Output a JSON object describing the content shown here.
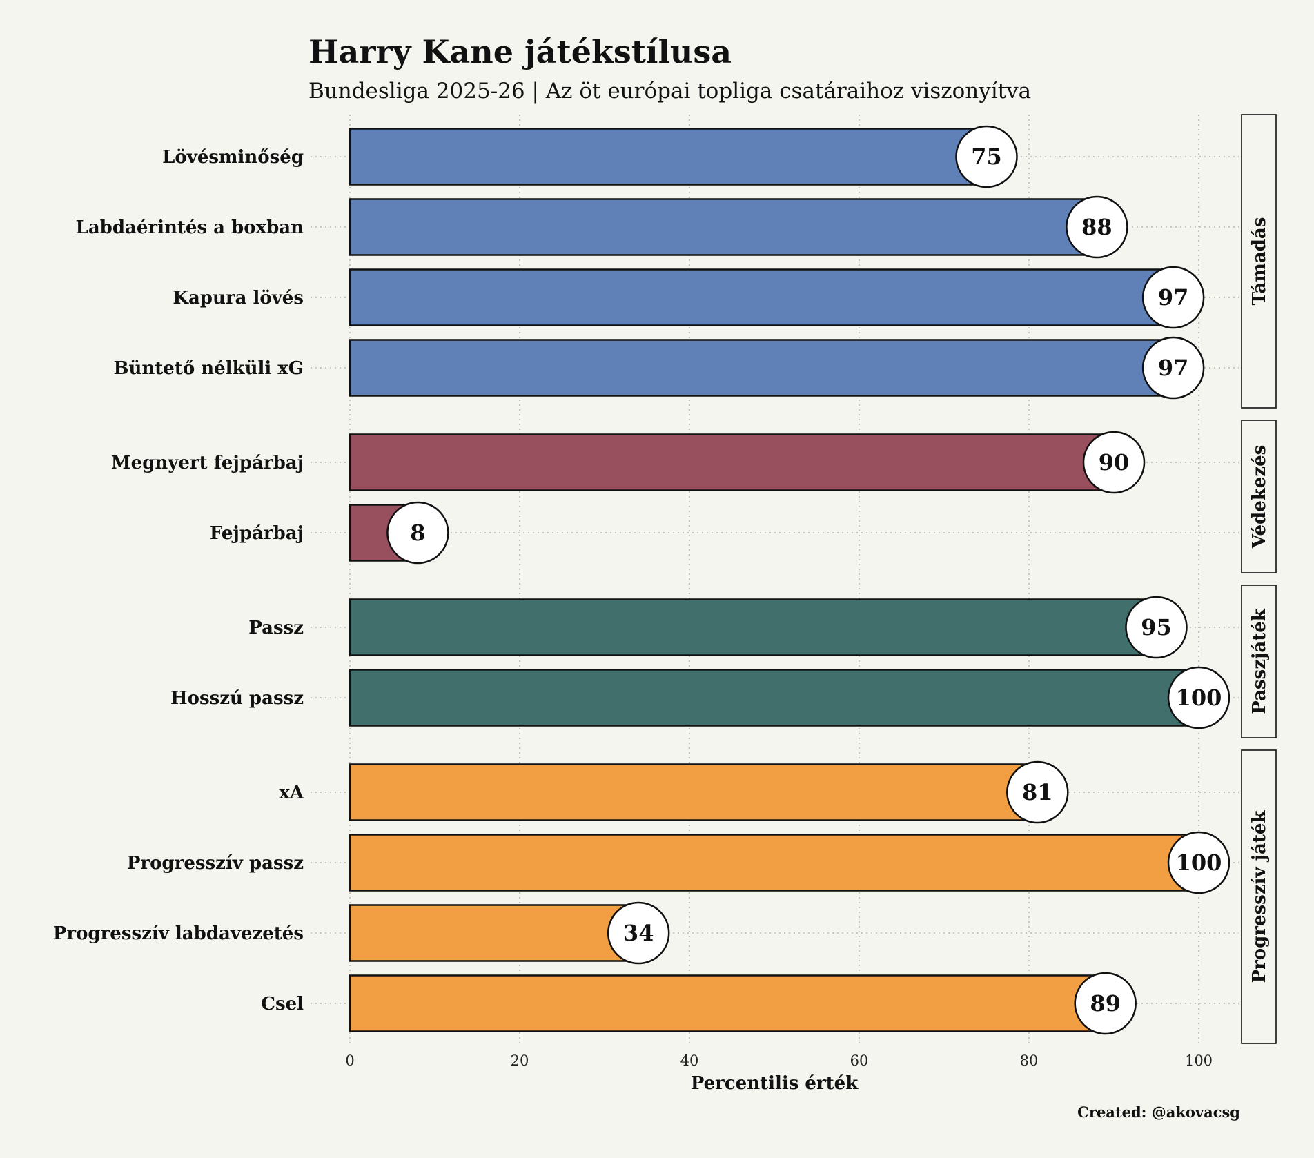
{
  "chart_data": {
    "type": "bar",
    "orientation": "horizontal",
    "title": "Harry Kane játékstílusa",
    "subtitle": "Bundesliga 2025-26 | Az öt európai topliga csatáraihoz viszonyítva",
    "xlabel": "Percentilis érték",
    "xlim": [
      0,
      100
    ],
    "xticks": [
      0,
      20,
      40,
      60,
      80,
      100
    ],
    "grid": true,
    "credit": "Created: @akovacsg",
    "groups": [
      {
        "name": "Támadás",
        "color": "#5f81b8",
        "items": [
          {
            "label": "Lövésminőség",
            "value": 75
          },
          {
            "label": "Labdaérintés a boxban",
            "value": 88
          },
          {
            "label": "Kapura lövés",
            "value": 97
          },
          {
            "label": "Büntető nélküli xG",
            "value": 97
          }
        ]
      },
      {
        "name": "Védekezés",
        "color": "#98505e",
        "items": [
          {
            "label": "Megnyert fejpárbaj",
            "value": 90
          },
          {
            "label": "Fejpárbaj",
            "value": 8
          }
        ]
      },
      {
        "name": "Passzjáték",
        "color": "#416f6c",
        "items": [
          {
            "label": "Passz",
            "value": 95
          },
          {
            "label": "Hosszú passz",
            "value": 100
          }
        ]
      },
      {
        "name": "Progresszív játék",
        "color": "#f29f43",
        "items": [
          {
            "label": "xA",
            "value": 81
          },
          {
            "label": "Progresszív passz",
            "value": 100
          },
          {
            "label": "Progresszív labdavezetés",
            "value": 34
          },
          {
            "label": "Csel",
            "value": 89
          }
        ]
      }
    ]
  }
}
